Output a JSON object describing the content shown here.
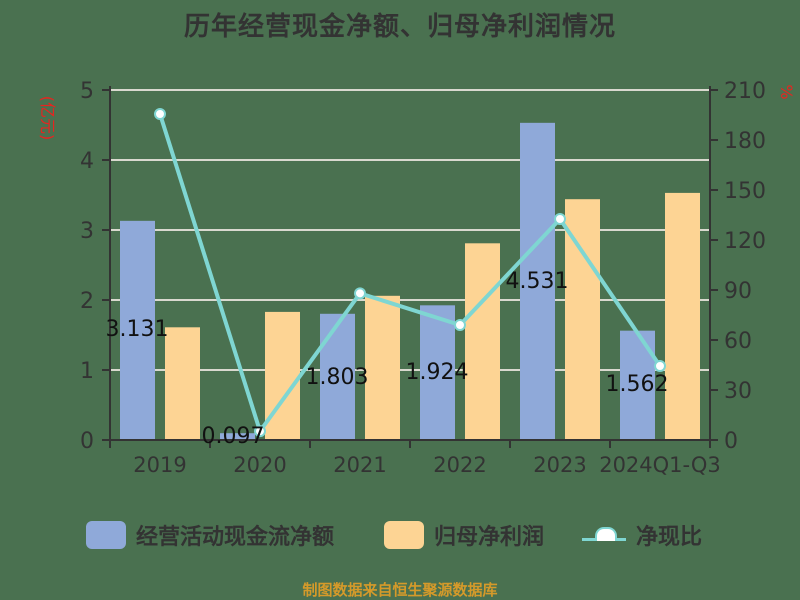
{
  "title": "历年经营现金净额、归母净利润情况",
  "footer": "制图数据来自恒生聚源数据库",
  "colors": {
    "background": "#4a7150",
    "cashflow_bar": "#8fa9d9",
    "profit_bar": "#fdd494",
    "ratio_line": "#7fd6d2",
    "axis": "#333333",
    "unit_label": "#e8241f",
    "footer": "#d59a2a"
  },
  "legend": {
    "items": [
      {
        "label": "经营活动现金流净额",
        "type": "bar"
      },
      {
        "label": "归母净利润",
        "type": "bar"
      },
      {
        "label": "净现比",
        "type": "line"
      }
    ]
  },
  "chart_data": {
    "type": "bar",
    "title": "历年经营现金净额、归母净利润情况",
    "categories": [
      "2019",
      "2020",
      "2021",
      "2022",
      "2023",
      "2024Q1-Q3"
    ],
    "series": [
      {
        "name": "经营活动现金流净额",
        "type": "bar",
        "axis": "left",
        "values": [
          3.131,
          0.097,
          1.803,
          1.924,
          4.531,
          1.562
        ],
        "data_labels": [
          "3.131",
          "0.097",
          "1.803",
          "1.924",
          "4.531",
          "1.562"
        ]
      },
      {
        "name": "归母净利润",
        "type": "bar",
        "axis": "left",
        "values": [
          1.61,
          1.83,
          2.06,
          2.81,
          3.44,
          3.53
        ]
      },
      {
        "name": "净现比",
        "type": "line",
        "axis": "right",
        "values": [
          195.6,
          5.3,
          88.0,
          69.0,
          132.6,
          44.4
        ]
      }
    ],
    "left_axis": {
      "label": "(亿元)",
      "ticks": [
        0,
        1,
        2,
        3,
        4,
        5
      ],
      "ylim": [
        0,
        5
      ]
    },
    "right_axis": {
      "label": "%",
      "ticks": [
        0,
        30,
        60,
        90,
        120,
        150,
        180,
        210
      ],
      "ylim": [
        0,
        210
      ]
    },
    "xlabel": "",
    "grid": true,
    "legend_position": "bottom"
  }
}
